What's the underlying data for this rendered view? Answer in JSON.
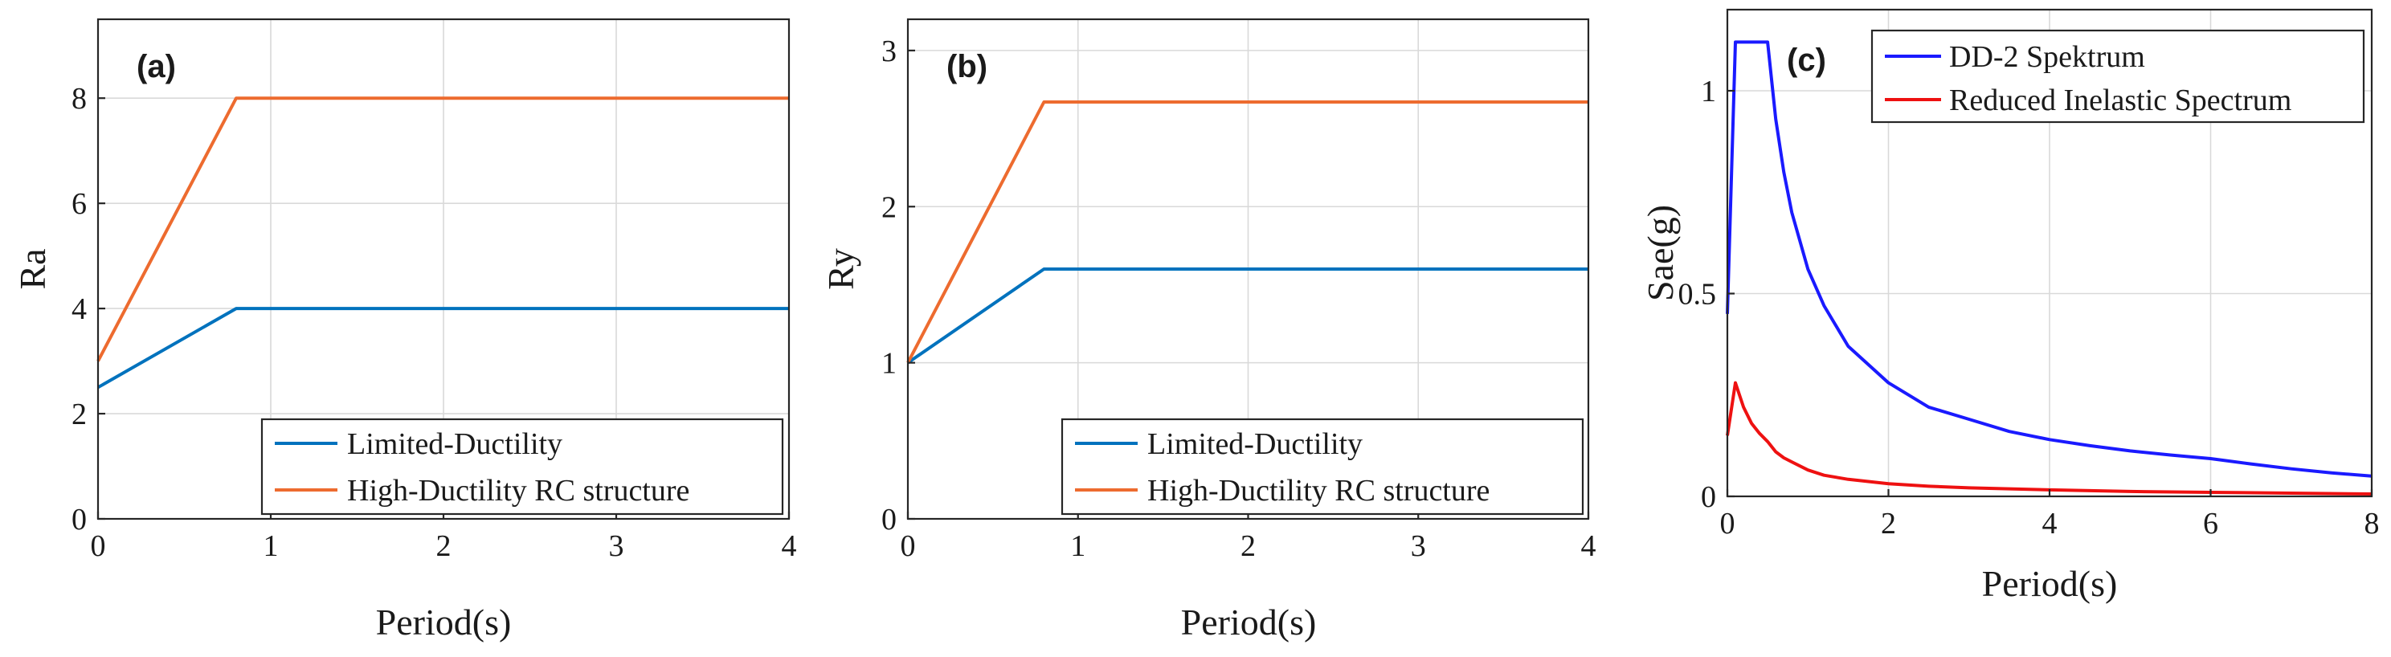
{
  "chart_data": [
    {
      "type": "line",
      "panel_label": "(a)",
      "xlabel": "Period(s)",
      "ylabel": "Ra",
      "xlim": [
        0,
        4
      ],
      "ylim": [
        0,
        9.5
      ],
      "xticks": [
        0,
        1,
        2,
        3,
        4
      ],
      "yticks": [
        0,
        2,
        4,
        6,
        8
      ],
      "grid": true,
      "legend_position": "bottom-right",
      "series": [
        {
          "name": "Limited-Ductility",
          "color": "#0072bd",
          "x": [
            0,
            0.8,
            4
          ],
          "y": [
            2.5,
            4,
            4
          ]
        },
        {
          "name": "High-Ductility RC structure",
          "color": "#ed6b2f",
          "x": [
            0,
            0.8,
            4
          ],
          "y": [
            3,
            8,
            8
          ]
        }
      ]
    },
    {
      "type": "line",
      "panel_label": "(b)",
      "xlabel": "Period(s)",
      "ylabel": "Ry",
      "xlim": [
        0,
        4
      ],
      "ylim": [
        0,
        3.2
      ],
      "xticks": [
        0,
        1,
        2,
        3,
        4
      ],
      "yticks": [
        0,
        1,
        2,
        3
      ],
      "grid": true,
      "legend_position": "bottom-right",
      "series": [
        {
          "name": "Limited-Ductility",
          "color": "#0072bd",
          "x": [
            0,
            0.8,
            4
          ],
          "y": [
            1,
            1.6,
            1.6
          ]
        },
        {
          "name": "High-Ductility RC structure",
          "color": "#ed6b2f",
          "x": [
            0,
            0.8,
            4
          ],
          "y": [
            1,
            2.67,
            2.67
          ]
        }
      ]
    },
    {
      "type": "line",
      "panel_label": "(c)",
      "xlabel": "Period(s)",
      "ylabel": "Sae(g)",
      "xlim": [
        0,
        8
      ],
      "ylim": [
        0,
        1.2
      ],
      "xticks": [
        0,
        2,
        4,
        6,
        8
      ],
      "yticks": [
        0,
        0.5,
        1
      ],
      "grid": true,
      "legend_position": "top-right",
      "series": [
        {
          "name": "DD-2 Spektrum",
          "color": "#1a1aff",
          "x": [
            0,
            0.1,
            0.5,
            0.6,
            0.7,
            0.8,
            1.0,
            1.2,
            1.5,
            2.0,
            2.5,
            3.0,
            3.5,
            4.0,
            4.5,
            5.0,
            5.5,
            6.0,
            6.5,
            7.0,
            7.5,
            8.0
          ],
          "y": [
            0.45,
            1.12,
            1.12,
            0.93,
            0.8,
            0.7,
            0.56,
            0.47,
            0.37,
            0.28,
            0.22,
            0.19,
            0.16,
            0.14,
            0.125,
            0.112,
            0.102,
            0.093,
            0.08,
            0.068,
            0.058,
            0.05
          ]
        },
        {
          "name": "Reduced Inelastic Spectrum",
          "color": "#ee1111",
          "x": [
            0,
            0.1,
            0.2,
            0.3,
            0.4,
            0.5,
            0.6,
            0.7,
            0.8,
            1.0,
            1.2,
            1.5,
            2.0,
            2.5,
            3.0,
            4.0,
            5.0,
            6.0,
            7.0,
            8.0
          ],
          "y": [
            0.15,
            0.28,
            0.22,
            0.18,
            0.155,
            0.135,
            0.11,
            0.095,
            0.085,
            0.065,
            0.052,
            0.042,
            0.031,
            0.025,
            0.021,
            0.016,
            0.012,
            0.01,
            0.008,
            0.006
          ]
        }
      ]
    }
  ]
}
